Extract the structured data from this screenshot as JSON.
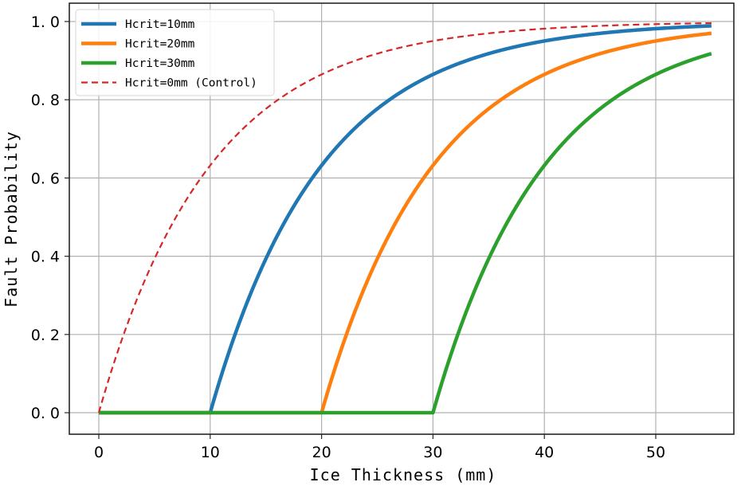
{
  "chart_data": {
    "type": "line",
    "title": "",
    "xlabel": "Ice Thickness (mm)",
    "ylabel": "Fault Probability",
    "xlim": [
      -2.6,
      57
    ],
    "ylim": [
      -0.055,
      1.045
    ],
    "xticks": [
      0,
      10,
      20,
      30,
      40,
      50
    ],
    "yticks": [
      0.0,
      0.2,
      0.4,
      0.6,
      0.8,
      1.0
    ],
    "xtick_labels": [
      "0",
      "10",
      "20",
      "30",
      "40",
      "50"
    ],
    "ytick_labels": [
      "0.0",
      "0.2",
      "0.4",
      "0.6",
      "0.8",
      "1.0"
    ],
    "grid": true,
    "legend_position": "upper left",
    "x": [
      0,
      5,
      10,
      15,
      20,
      25,
      30,
      35,
      40,
      45,
      50,
      55
    ],
    "series": [
      {
        "name": "Hcrit=10mm",
        "color": "#1f77b4",
        "style": "solid",
        "width": 4.5,
        "hcrit": 10,
        "scale": 10,
        "values": [
          0,
          0,
          0,
          0.393,
          0.632,
          0.777,
          0.865,
          0.918,
          0.95,
          0.97,
          0.982,
          0.989
        ]
      },
      {
        "name": "Hcrit=20mm",
        "color": "#ff7f0e",
        "style": "solid",
        "width": 4.5,
        "hcrit": 20,
        "scale": 10,
        "values": [
          0,
          0,
          0,
          0,
          0,
          0.393,
          0.632,
          0.777,
          0.865,
          0.918,
          0.95,
          0.97
        ]
      },
      {
        "name": "Hcrit=30mm",
        "color": "#2ca02c",
        "style": "solid",
        "width": 4.5,
        "hcrit": 30,
        "scale": 10,
        "values": [
          0,
          0,
          0,
          0,
          0,
          0,
          0,
          0.393,
          0.632,
          0.777,
          0.865,
          0.918
        ]
      },
      {
        "name": "Hcrit=0mm (Control)",
        "color": "#d62728",
        "style": "dashed",
        "width": 2.2,
        "hcrit": 0,
        "scale": 10,
        "values": [
          0,
          0.393,
          0.632,
          0.777,
          0.865,
          0.918,
          0.95,
          0.97,
          0.982,
          0.989,
          0.993,
          0.996
        ]
      }
    ]
  },
  "legend": {
    "items": [
      {
        "label": "Hcrit=10mm"
      },
      {
        "label": "Hcrit=20mm"
      },
      {
        "label": "Hcrit=30mm"
      },
      {
        "label": "Hcrit=0mm (Control)"
      }
    ]
  },
  "axes": {
    "xlabel": "Ice Thickness (mm)",
    "ylabel": "Fault Probability"
  }
}
